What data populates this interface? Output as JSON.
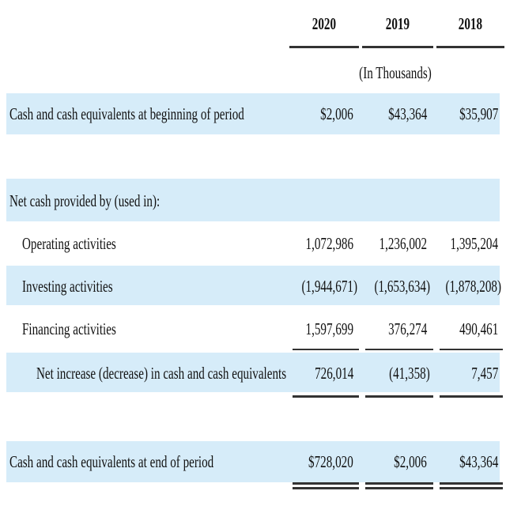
{
  "table": {
    "years": [
      "2020",
      "2019",
      "2018"
    ],
    "unit_note": "(In Thousands)",
    "beginning": {
      "label": "Cash and cash equivalents at beginning of period",
      "values": [
        "$2,006",
        "$43,364",
        "$35,907"
      ]
    },
    "section_label": "Net cash provided by (used in):",
    "operating": {
      "label": "Operating activities",
      "values": [
        "1,072,986",
        "1,236,002",
        "1,395,204"
      ]
    },
    "investing": {
      "label": "Investing activities",
      "values": [
        "(1,944,671)",
        "(1,653,634)",
        "(1,878,208)"
      ]
    },
    "financing": {
      "label": "Financing activities",
      "values": [
        "1,597,699",
        "376,274",
        "490,461"
      ]
    },
    "net_change": {
      "label": "Net increase (decrease) in cash and cash equivalents",
      "values": [
        "726,014",
        "(41,358)",
        "7,457"
      ]
    },
    "ending": {
      "label": "Cash and cash equivalents at end of period",
      "values": [
        "$728,020",
        "$2,006",
        "$43,364"
      ]
    },
    "colors": {
      "band": "#d6ecf9",
      "rule": "#333333",
      "text": "#111111"
    }
  }
}
